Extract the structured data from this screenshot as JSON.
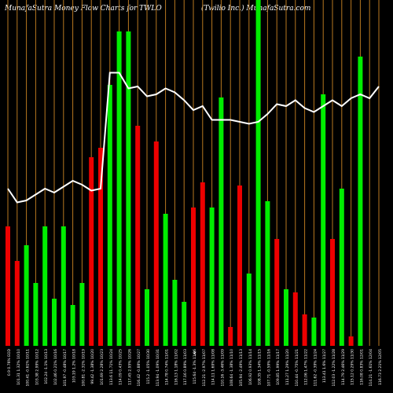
{
  "header": {
    "left": "MunafaSutra  Money Flow  Charts for TWLO",
    "right": "(Twilio  Inc.) MunafaSutra.com"
  },
  "chart_data": {
    "type": "bar",
    "title": "MunafaSutra Money Flow Charts for TWLO",
    "grid": true,
    "colors": {
      "up": "#00ee00",
      "down": "#ee0000",
      "line": "#ffffff",
      "grid": "#b87820",
      "background": "#000000"
    },
    "currency_mark": "₹",
    "categories": [
      "0.9 0.76% EOD",
      "101.31 1.32% 10/10",
      "100.41 -0.61% 10/11",
      "103.38 2.99% 10/12",
      "102.24 -1.1% 10/13",
      "102.46 0.21% 10/16",
      "101.97 -0.48% 10/17",
      "103.19 1.2% 10/18",
      "100.81 -2.31% 10/19",
      "99.42 -1.38% 10/20",
      "101.69 2.28% 10/23",
      "113.6 11.71% 10/24",
      "114.09 0.43% 10/25",
      "117.45 2.95% 10/26",
      "116.42 -0.88% 10/27",
      "115.2 -1.05% 10/30",
      "113.94 -1.09% 10/31",
      "114.78 0.74% 11/01",
      "116.13 1.18% 11/02",
      "117.16 0.89% 11/03",
      "115.64 -1.3% 11/06",
      "112.21 -2.97% 11/07",
      "114.11 1.69% 11/08",
      "110.16 -3.46% 11/09",
      "108.64 -1.38% 11/10",
      "105.94 -2.49% 11/13",
      "106.92 0.93% 11/14",
      "108.35 1.34% 11/15",
      "107.71 -0.59% 11/16",
      "109.85 1.99% 11/17",
      "111.27 1.29% 11/20",
      "110.44 -0.75% 11/21",
      "112.06 1.47% 11/22",
      "111.62 -0.39% 11/24",
      "113.41 1.6% 11/27",
      "112.03 -1.22% 11/28",
      "114.79 2.46% 11/29",
      "115.12 0.29% 11/30",
      "116.08 0.83% 12/01",
      "114.21 -1.61% 12/04",
      "116.73 2.21% 12/05"
    ],
    "values": [
      38,
      27,
      32,
      20,
      38,
      15,
      38,
      13,
      20,
      60,
      63,
      83,
      100,
      100,
      70,
      18,
      65,
      42,
      21,
      14,
      44,
      52,
      44,
      79,
      6,
      51,
      23,
      110,
      46,
      34,
      18,
      17,
      10,
      9,
      80,
      34,
      50,
      3,
      92,
      0,
      0
    ],
    "directions": [
      "down",
      "down",
      "up",
      "up",
      "up",
      "up",
      "up",
      "up",
      "up",
      "down",
      "down",
      "up",
      "up",
      "up",
      "down",
      "up",
      "down",
      "up",
      "up",
      "up",
      "down",
      "down",
      "up",
      "up",
      "down",
      "down",
      "up",
      "up",
      "up",
      "down",
      "up",
      "down",
      "down",
      "up",
      "up",
      "down",
      "up",
      "down",
      "up",
      "up",
      "up"
    ],
    "money_flow_line": [
      1000,
      965,
      970,
      985,
      1000,
      990,
      1005,
      1020,
      1010,
      995,
      1000,
      1295,
      1295,
      1255,
      1260,
      1235,
      1240,
      1255,
      1245,
      1225,
      1200,
      1210,
      1175,
      1175,
      1175,
      1170,
      1165,
      1170,
      1190,
      1215,
      1210,
      1225,
      1205,
      1195,
      1210,
      1225,
      1210,
      1230,
      1240,
      1230,
      1260
    ]
  }
}
